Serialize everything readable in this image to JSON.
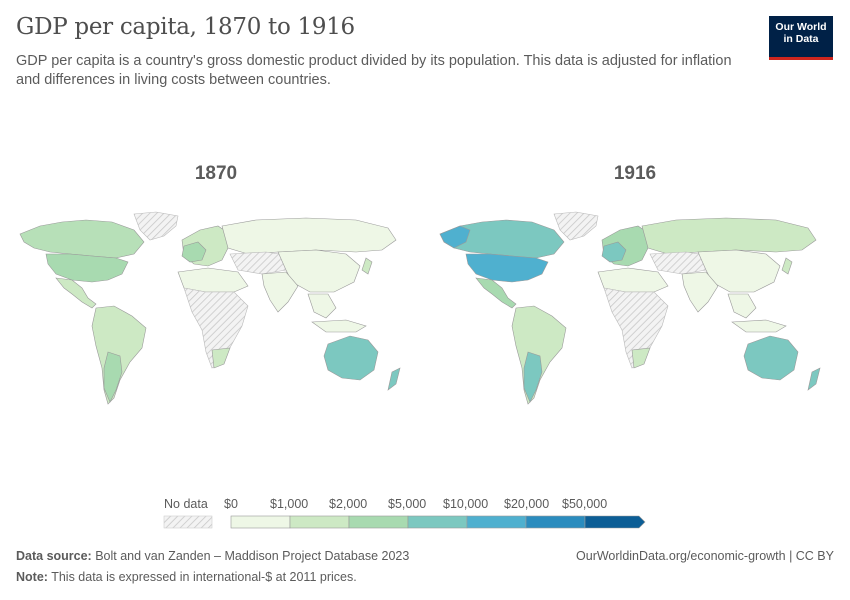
{
  "header": {
    "title": "GDP per capita, 1870 to 1916",
    "subtitle": "GDP per capita is a country's gross domestic product divided by its population. This data is adjusted for inflation and differences in living costs between countries."
  },
  "logo": {
    "line1": "Our World",
    "line2": "in Data"
  },
  "maps": [
    {
      "year": "1870"
    },
    {
      "year": "1916"
    }
  ],
  "legend": {
    "no_data_label": "No data",
    "bins": [
      "$0",
      "$1,000",
      "$2,000",
      "$5,000",
      "$10,000",
      "$20,000",
      "$50,000"
    ],
    "colors": [
      "#eef7e6",
      "#cde9c4",
      "#a8dab0",
      "#7cc8c0",
      "#4fb0cf",
      "#2b8cbe",
      "#0c5e96"
    ]
  },
  "colors": {
    "no_data": "#e8e8e8",
    "border": "#9a9a9a"
  },
  "footer": {
    "source_label": "Data source:",
    "source_text": "Bolt and van Zanden – Maddison Project Database 2023",
    "note_label": "Note:",
    "note_text": "This data is expressed in international-$ at 2011 prices.",
    "url": "OurWorldinData.org/economic-growth | CC BY"
  }
}
